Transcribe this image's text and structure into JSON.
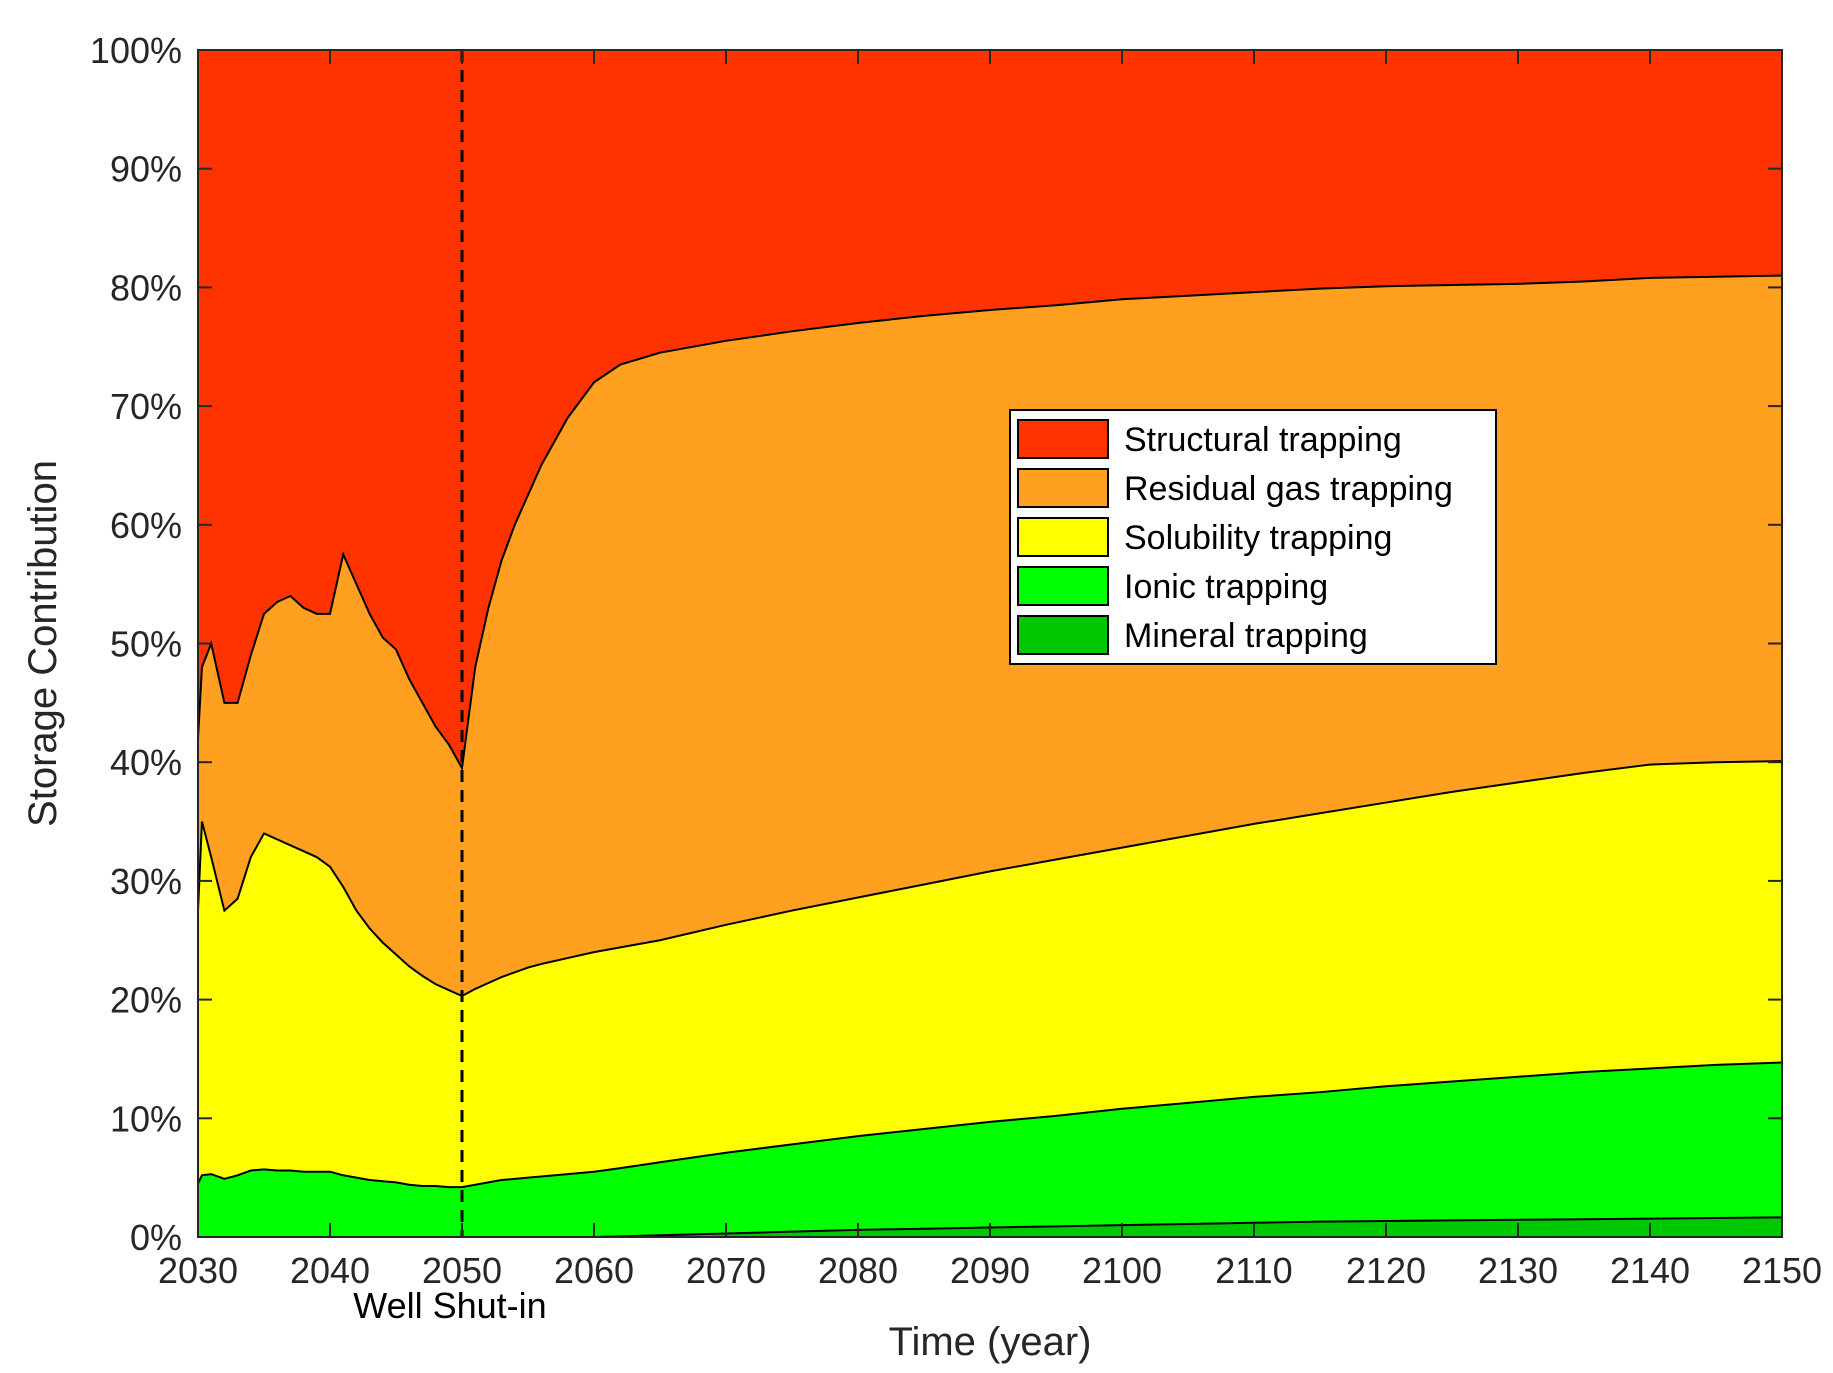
{
  "chart_data": {
    "type": "area",
    "stacked": true,
    "xlabel": "Time (year)",
    "ylabel": "Storage Contribution",
    "xlim": [
      2030,
      2150
    ],
    "ylim": [
      0,
      100
    ],
    "x_ticks": [
      "2030",
      "2040",
      "2050",
      "2060",
      "2070",
      "2080",
      "2090",
      "2100",
      "2110",
      "2120",
      "2130",
      "2140",
      "2150"
    ],
    "y_ticks": [
      "0%",
      "10%",
      "20%",
      "30%",
      "40%",
      "50%",
      "60%",
      "70%",
      "80%",
      "90%",
      "100%"
    ],
    "annotation": {
      "text": "Well Shut-in",
      "x": 2050
    },
    "legend_position": "upper-center-right",
    "grid": false,
    "x": [
      2030,
      2030.3,
      2031,
      2032,
      2033,
      2034,
      2035,
      2036,
      2037,
      2038,
      2039,
      2040,
      2041,
      2042,
      2043,
      2044,
      2045,
      2046,
      2047,
      2048,
      2049,
      2050,
      2051,
      2052,
      2053,
      2054,
      2055,
      2056,
      2058,
      2060,
      2062,
      2065,
      2070,
      2075,
      2080,
      2085,
      2090,
      2095,
      2100,
      2105,
      2110,
      2115,
      2120,
      2125,
      2130,
      2135,
      2140,
      2145,
      2150
    ],
    "series": [
      {
        "name": "Mineral trapping",
        "color": "#00c800",
        "cumulative_top": [
          0,
          0,
          0,
          0,
          0,
          0,
          0,
          0,
          0,
          0,
          0,
          0,
          0,
          0,
          0,
          0,
          0,
          0,
          0,
          0,
          0,
          0,
          0,
          0,
          0,
          0,
          0,
          0,
          0,
          0,
          0.05,
          0.15,
          0.3,
          0.45,
          0.6,
          0.7,
          0.8,
          0.9,
          1.0,
          1.1,
          1.2,
          1.3,
          1.35,
          1.4,
          1.45,
          1.5,
          1.55,
          1.6,
          1.65
        ]
      },
      {
        "name": "Ionic trapping",
        "color": "#00ff00",
        "cumulative_top": [
          4.5,
          5.2,
          5.3,
          4.9,
          5.2,
          5.6,
          5.7,
          5.6,
          5.6,
          5.5,
          5.5,
          5.5,
          5.2,
          5.0,
          4.8,
          4.7,
          4.6,
          4.4,
          4.3,
          4.3,
          4.2,
          4.2,
          4.4,
          4.6,
          4.8,
          4.9,
          5.0,
          5.1,
          5.3,
          5.5,
          5.8,
          6.3,
          7.1,
          7.8,
          8.5,
          9.1,
          9.7,
          10.2,
          10.8,
          11.3,
          11.8,
          12.2,
          12.7,
          13.1,
          13.5,
          13.9,
          14.2,
          14.5,
          14.7
        ]
      },
      {
        "name": "Solubility trapping",
        "color": "#ffff00",
        "cumulative_top": [
          27.5,
          35,
          32,
          27.5,
          28.5,
          32,
          34,
          33.5,
          33,
          32.5,
          32,
          31.2,
          29.5,
          27.5,
          26,
          24.8,
          23.8,
          22.8,
          22,
          21.3,
          20.8,
          20.3,
          20.9,
          21.4,
          21.9,
          22.3,
          22.7,
          23.0,
          23.5,
          24.0,
          24.4,
          25.0,
          26.3,
          27.5,
          28.6,
          29.7,
          30.8,
          31.8,
          32.8,
          33.8,
          34.8,
          35.7,
          36.6,
          37.5,
          38.3,
          39.1,
          39.8,
          40.0,
          40.1
        ]
      },
      {
        "name": "Residual gas trapping",
        "color": "#ffa020",
        "cumulative_top": [
          42,
          48,
          50,
          45,
          45,
          49,
          52.5,
          53.5,
          54,
          53,
          52.5,
          52.5,
          57.5,
          55,
          52.5,
          50.5,
          49.5,
          47,
          45,
          43,
          41.5,
          39.5,
          48,
          53,
          57,
          60,
          62.5,
          65,
          69,
          72,
          73.5,
          74.5,
          75.5,
          76.3,
          77.0,
          77.6,
          78.1,
          78.5,
          79.0,
          79.3,
          79.6,
          79.9,
          80.1,
          80.2,
          80.3,
          80.5,
          80.8,
          80.9,
          81.0
        ]
      },
      {
        "name": "Structural trapping",
        "color": "#ff3300",
        "cumulative_top": [
          100,
          100,
          100,
          100,
          100,
          100,
          100,
          100,
          100,
          100,
          100,
          100,
          100,
          100,
          100,
          100,
          100,
          100,
          100,
          100,
          100,
          100,
          100,
          100,
          100,
          100,
          100,
          100,
          100,
          100,
          100,
          100,
          100,
          100,
          100,
          100,
          100,
          100,
          100,
          100,
          100,
          100,
          100,
          100,
          100,
          100,
          100,
          100,
          100
        ]
      }
    ],
    "legend_order": [
      "Structural trapping",
      "Residual gas trapping",
      "Solubility trapping",
      "Ionic trapping",
      "Mineral trapping"
    ]
  }
}
